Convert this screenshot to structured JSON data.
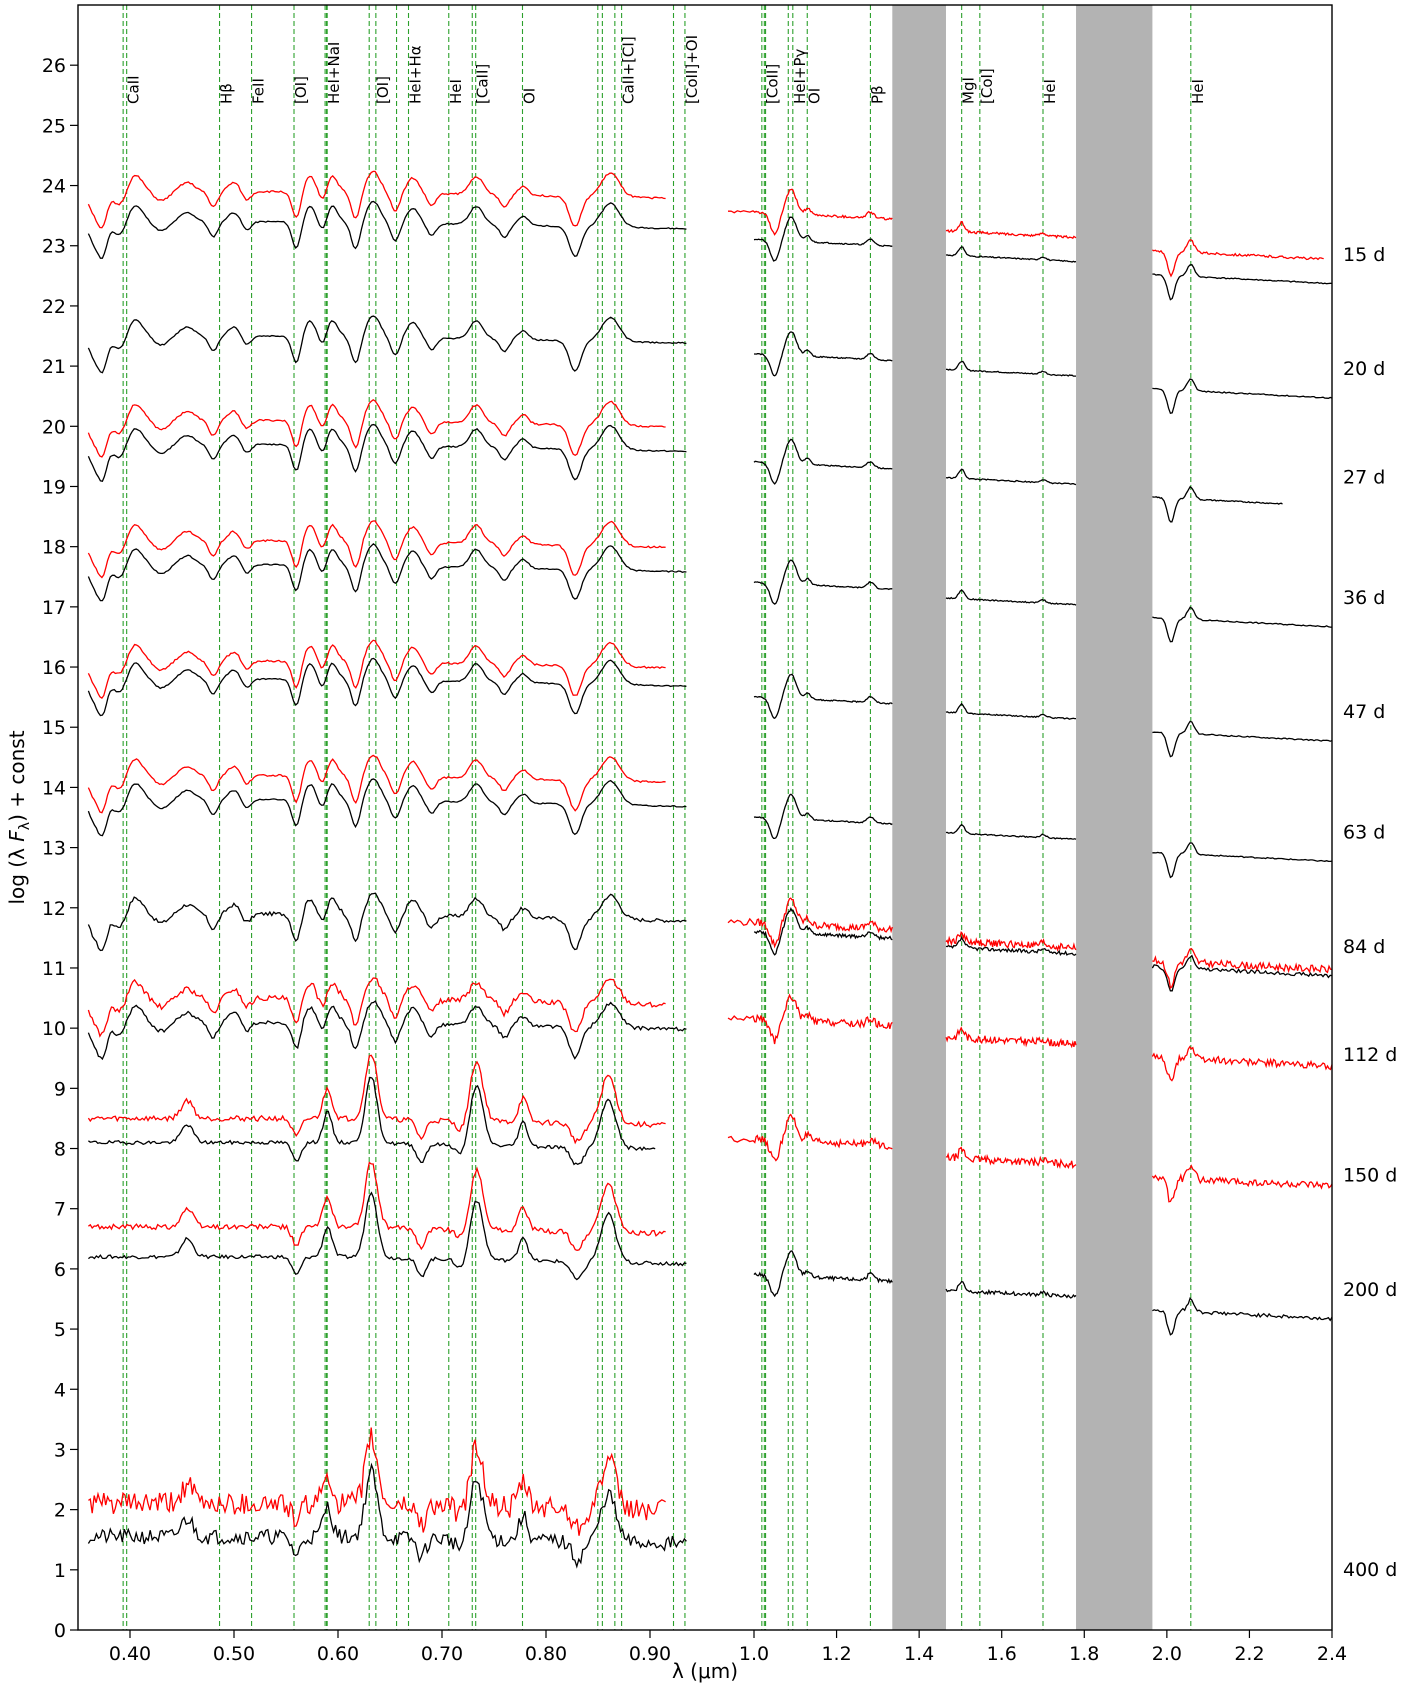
{
  "chart_data": {
    "type": "line",
    "xlabel": "λ (μm)",
    "ylabel": "log (λ F_λ) + const",
    "ylabel_parts": [
      "log (λ ",
      "F",
      "λ",
      ") + const"
    ],
    "xlim": [
      0.35,
      2.4
    ],
    "ylim": [
      0,
      27
    ],
    "x_break": 1.0,
    "x_ticks_optical": [
      0.4,
      0.5,
      0.6,
      0.7,
      0.8,
      0.9
    ],
    "x_ticks_ir": [
      1.0,
      1.2,
      1.4,
      1.6,
      1.8,
      2.0,
      2.2,
      2.4
    ],
    "x_tick_labels": [
      "0.40",
      "0.50",
      "0.60",
      "0.70",
      "0.80",
      "0.90",
      "1.0",
      "1.2",
      "1.4",
      "1.6",
      "1.8",
      "2.0",
      "2.2",
      "2.4"
    ],
    "y_ticks": [
      0,
      1,
      2,
      3,
      4,
      5,
      6,
      7,
      8,
      9,
      10,
      11,
      12,
      13,
      14,
      15,
      16,
      17,
      18,
      19,
      20,
      21,
      22,
      23,
      24,
      25,
      26
    ],
    "telluric_bands": [
      [
        1.335,
        1.465
      ],
      [
        1.78,
        1.965
      ]
    ],
    "colors": {
      "model": "#000000",
      "observed": "#ff0000",
      "line_marker": "#2ca02c",
      "telluric": "#b3b3b3"
    },
    "line_markers": [
      {
        "label": "CaII",
        "x": [
          0.3934,
          0.3968
        ]
      },
      {
        "label": "Hβ",
        "x": [
          0.4861
        ]
      },
      {
        "label": "FeII",
        "x": [
          0.5169
        ]
      },
      {
        "label": "[OI]",
        "x": [
          0.5577
        ]
      },
      {
        "label": "HeI+NaI",
        "x": [
          0.5876,
          0.589,
          0.5896
        ]
      },
      {
        "label": "[OI]",
        "x": [
          0.63,
          0.6364
        ]
      },
      {
        "label": "HeI+Hα",
        "x": [
          0.6563,
          0.6678
        ]
      },
      {
        "label": "HeI",
        "x": [
          0.7065
        ]
      },
      {
        "label": "[CaII]",
        "x": [
          0.7291,
          0.7324
        ]
      },
      {
        "label": "OI",
        "x": [
          0.7774
        ]
      },
      {
        "label": "CaII+[CI]",
        "x": [
          0.8498,
          0.8542,
          0.8662,
          0.8727
        ]
      },
      {
        "label": "[CoII]+OI",
        "x": [
          0.9226,
          0.9336
        ]
      },
      {
        "label": "[CoII]",
        "x": [
          1.019,
          1.025,
          1.028
        ]
      },
      {
        "label": "HeI+Pγ",
        "x": [
          1.083,
          1.094
        ]
      },
      {
        "label": "OI",
        "x": [
          1.129
        ]
      },
      {
        "label": "Pβ",
        "x": [
          1.282
        ]
      },
      {
        "label": "MgI",
        "x": [
          1.503
        ]
      },
      {
        "label": "[CoI]",
        "x": [
          1.547
        ]
      },
      {
        "label": "HeI",
        "x": [
          1.7
        ]
      },
      {
        "label": "HeI",
        "x": [
          2.058
        ]
      }
    ],
    "epochs": [
      {
        "label": "15 d",
        "model_offset": 23.4,
        "observed_offset": 23.9,
        "observed_optical": true,
        "observed_ir": true,
        "model_ir_end": 2.4,
        "observed_ir_end": 2.38
      },
      {
        "label": "20 d",
        "model_offset": 21.5,
        "observed_optical": false,
        "observed_ir": false,
        "model_ir_end": 2.4
      },
      {
        "label": "27 d",
        "model_offset": 19.7,
        "observed_offset": 20.1,
        "observed_optical": true,
        "observed_ir": false,
        "model_ir_end": 2.28
      },
      {
        "label": "36 d",
        "model_offset": 17.7,
        "observed_offset": 18.1,
        "observed_optical": true,
        "observed_ir": false,
        "model_ir_end": 2.4
      },
      {
        "label": "47 d",
        "model_offset": 15.8,
        "observed_offset": 16.1,
        "observed_optical": true,
        "observed_ir": false,
        "model_ir_end": 2.4
      },
      {
        "label": "63 d",
        "model_offset": 13.8,
        "observed_offset": 14.2,
        "observed_optical": true,
        "observed_ir": false,
        "model_ir_end": 2.4
      },
      {
        "label": "84 d",
        "model_offset": 11.9,
        "observed_offset": 12.1,
        "observed_optical": false,
        "observed_ir": true,
        "model_ir_end": 2.4,
        "observed_ir_end": 2.4
      },
      {
        "label": "112 d",
        "model_offset": 10.1,
        "observed_offset": 10.5,
        "observed_optical": true,
        "observed_ir": true,
        "model_ir_end": 0.985,
        "observed_ir_end": 2.4
      },
      {
        "label": "150 d",
        "model_offset": 8.1,
        "observed_offset": 8.5,
        "observed_optical": true,
        "observed_ir": true,
        "model_ir_end": 0.905,
        "observed_ir_end": 2.4
      },
      {
        "label": "200 d",
        "model_offset": 6.2,
        "observed_offset": 6.7,
        "observed_optical": true,
        "observed_ir": false,
        "model_ir_end": 2.4
      },
      {
        "label": "400 d",
        "model_offset": 1.55,
        "observed_offset": 2.1,
        "observed_optical": true,
        "observed_ir": false,
        "model_ir_end": 0.935
      }
    ]
  }
}
